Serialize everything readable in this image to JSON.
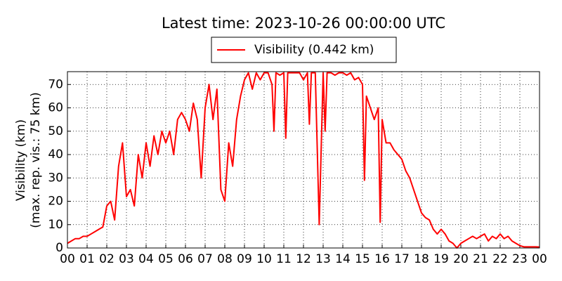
{
  "chart_data": {
    "type": "line",
    "title": "Latest time: 2023-10-26 00:00:00 UTC",
    "ylabel": [
      "Visibility (km)",
      "(max. rep. vis.: 75 km)"
    ],
    "x": [
      0,
      0.2,
      0.4,
      0.6,
      0.8,
      1.0,
      1.2,
      1.4,
      1.6,
      1.8,
      2.0,
      2.2,
      2.4,
      2.6,
      2.8,
      3.0,
      3.2,
      3.4,
      3.6,
      3.8,
      4.0,
      4.2,
      4.4,
      4.6,
      4.8,
      5.0,
      5.2,
      5.4,
      5.6,
      5.8,
      6.0,
      6.2,
      6.4,
      6.6,
      6.8,
      7.0,
      7.2,
      7.4,
      7.6,
      7.8,
      8.0,
      8.2,
      8.4,
      8.6,
      8.8,
      9.0,
      9.2,
      9.4,
      9.6,
      9.8,
      10.0,
      10.2,
      10.4,
      10.5,
      10.6,
      10.8,
      11.0,
      11.1,
      11.2,
      11.4,
      11.6,
      11.8,
      12.0,
      12.2,
      12.3,
      12.4,
      12.6,
      12.8,
      13.0,
      13.1,
      13.2,
      13.4,
      13.6,
      13.8,
      14.0,
      14.2,
      14.4,
      14.6,
      14.8,
      15.0,
      15.1,
      15.2,
      15.4,
      15.6,
      15.8,
      15.9,
      16.0,
      16.2,
      16.4,
      16.6,
      16.8,
      17.0,
      17.2,
      17.4,
      17.6,
      17.8,
      18.0,
      18.2,
      18.4,
      18.6,
      18.8,
      19.0,
      19.2,
      19.4,
      19.6,
      19.8,
      20.0,
      20.2,
      20.4,
      20.6,
      20.8,
      21.0,
      21.2,
      21.4,
      21.6,
      21.8,
      22.0,
      22.2,
      22.4,
      22.6,
      22.8,
      23.0,
      23.2,
      23.4,
      23.6,
      23.8,
      24
    ],
    "series": [
      {
        "name": "Visibility (0.442 km)",
        "color": "#ff0000",
        "values": [
          2,
          3,
          4,
          4,
          5,
          5,
          6,
          7,
          8,
          9,
          18,
          20,
          12,
          35,
          45,
          22,
          25,
          18,
          40,
          30,
          45,
          35,
          48,
          40,
          50,
          45,
          50,
          40,
          55,
          58,
          55,
          50,
          62,
          55,
          30,
          60,
          70,
          55,
          68,
          25,
          20,
          45,
          35,
          55,
          65,
          72,
          75,
          68,
          75,
          72,
          75,
          75,
          70,
          50,
          75,
          74,
          75,
          47,
          75,
          75,
          75,
          75,
          72,
          75,
          53,
          75,
          75,
          10,
          75,
          50,
          75,
          75,
          74,
          75,
          75,
          74,
          75,
          72,
          73,
          70,
          29,
          65,
          60,
          55,
          60,
          11,
          55,
          45,
          45,
          42,
          40,
          38,
          33,
          30,
          25,
          20,
          15,
          13,
          12,
          8,
          6,
          8,
          6,
          3,
          2,
          0,
          2,
          3,
          4,
          5,
          4,
          5,
          6,
          3,
          5,
          4,
          6,
          4,
          5,
          3,
          2,
          1,
          0.5,
          0.5,
          0.5,
          0.5,
          0.4
        ]
      }
    ],
    "xlim": [
      0,
      24
    ],
    "xticks": [
      {
        "value": 0,
        "label": "00"
      },
      {
        "value": 1,
        "label": "01"
      },
      {
        "value": 2,
        "label": "02"
      },
      {
        "value": 3,
        "label": "03"
      },
      {
        "value": 4,
        "label": "04"
      },
      {
        "value": 5,
        "label": "05"
      },
      {
        "value": 6,
        "label": "06"
      },
      {
        "value": 7,
        "label": "07"
      },
      {
        "value": 8,
        "label": "08"
      },
      {
        "value": 9,
        "label": "09"
      },
      {
        "value": 10,
        "label": "10"
      },
      {
        "value": 11,
        "label": "11"
      },
      {
        "value": 12,
        "label": "12"
      },
      {
        "value": 13,
        "label": "13"
      },
      {
        "value": 14,
        "label": "14"
      },
      {
        "value": 15,
        "label": "15"
      },
      {
        "value": 16,
        "label": "16"
      },
      {
        "value": 17,
        "label": "17"
      },
      {
        "value": 18,
        "label": "18"
      },
      {
        "value": 19,
        "label": "19"
      },
      {
        "value": 20,
        "label": "20"
      },
      {
        "value": 21,
        "label": "21"
      },
      {
        "value": 22,
        "label": "22"
      },
      {
        "value": 23,
        "label": "23"
      },
      {
        "value": 24,
        "label": "00"
      }
    ],
    "ylim": [
      0,
      75.5
    ],
    "yticks": [
      0,
      10,
      20,
      30,
      40,
      50,
      60,
      70
    ],
    "grid": true
  }
}
